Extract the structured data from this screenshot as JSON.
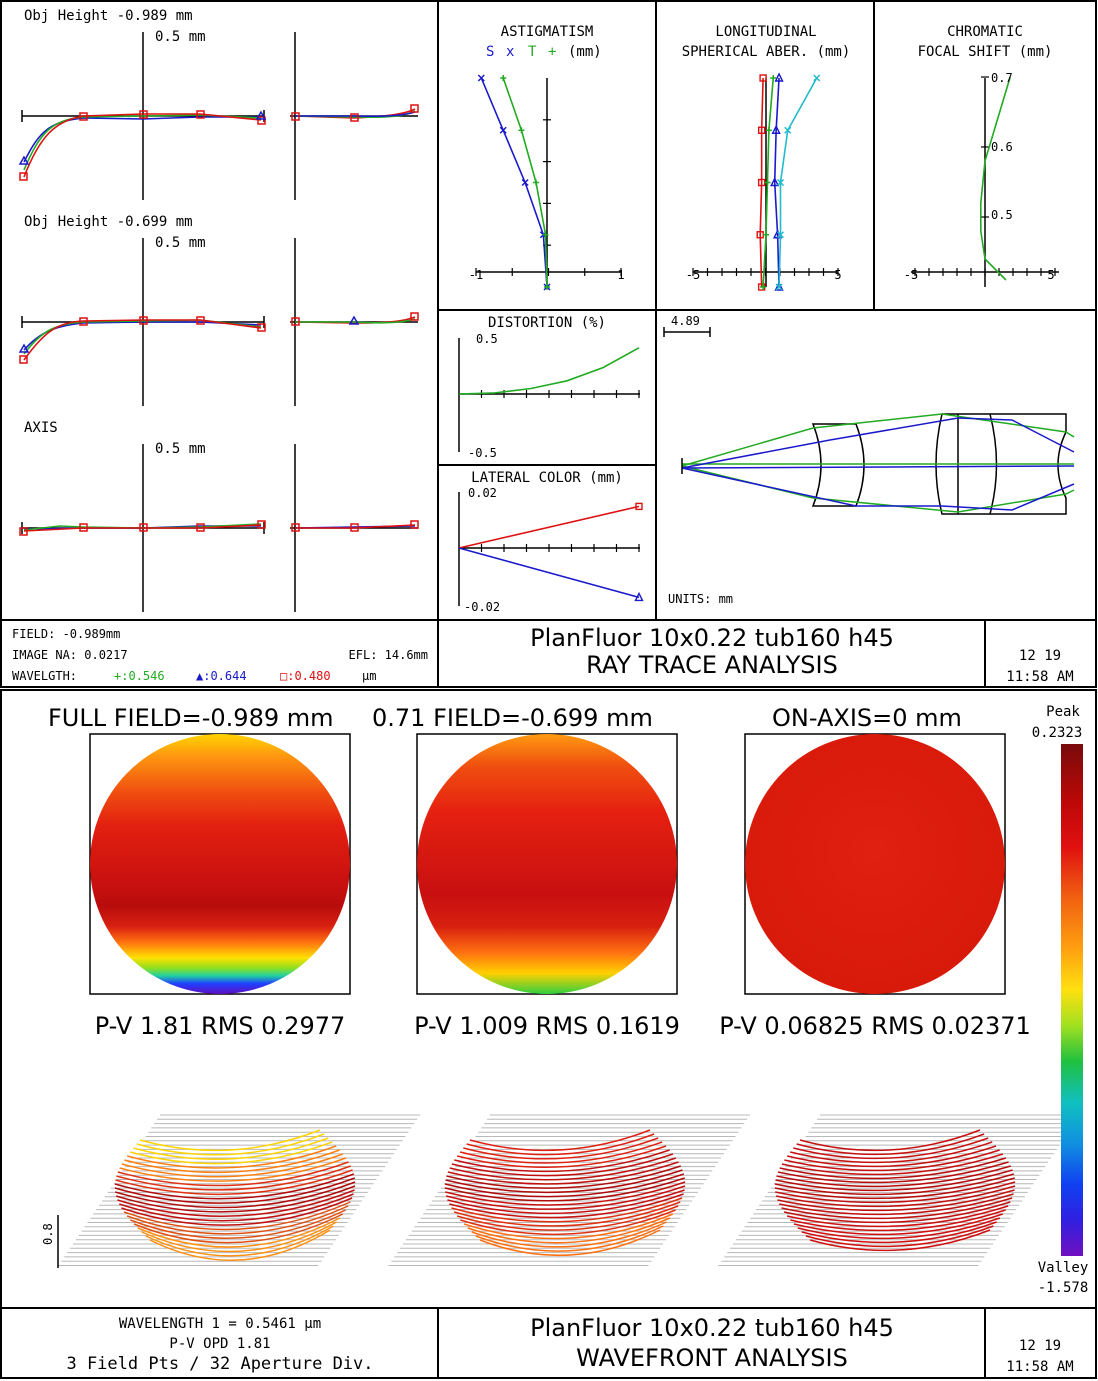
{
  "ray_panel": {
    "fan_labels": [
      "Obj Height -0.989 mm",
      "Obj Height -0.699 mm",
      "AXIS"
    ],
    "fan_scale": "0.5 mm",
    "astig_title": "ASTIGMATISM",
    "astig_legend": {
      "s": "S",
      "s_mark": "x",
      "t": "T",
      "t_mark": "+",
      "unit": "(mm)"
    },
    "astig_ticks": [
      "-1",
      "1"
    ],
    "long_title_1": "LONGITUDINAL",
    "long_title_2": "SPHERICAL ABER. (mm)",
    "long_ticks": [
      "-5",
      "5"
    ],
    "chrom_title_1": "CHROMATIC",
    "chrom_title_2": "FOCAL SHIFT (mm)",
    "chrom_ticks_x": [
      "-5",
      "5"
    ],
    "chrom_ticks_y": [
      "0.7",
      "0.6",
      "0.5"
    ],
    "dist_title": "DISTORTION (%)",
    "dist_ticks": [
      "0.5",
      "-0.5"
    ],
    "lat_title": "LATERAL COLOR (mm)",
    "lat_ticks": [
      "0.02",
      "-0.02"
    ],
    "lens_scale": "4.89",
    "units": "UNITS: mm",
    "field": "FIELD: -0.989mm",
    "image_na": "IMAGE NA: 0.0217",
    "efl": "EFL: 14.6mm",
    "wl_label": "WAVELGTH:",
    "wl_green": "+:0.546",
    "wl_blue": "▲:0.644",
    "wl_red": "□:0.480",
    "wl_unit": "µm",
    "title": "PlanFluor 10x0.22 tub160 h45",
    "subtitle": "RAY TRACE ANALYSIS",
    "date": "12  19",
    "time": "11:58 AM"
  },
  "wave_panel": {
    "field_labels": [
      "FULL FIELD=-0.989 mm",
      "0.71 FIELD=-0.699 mm",
      "ON-AXIS=0 mm"
    ],
    "stats": [
      "P-V 1.81 RMS 0.2977",
      "P-V 1.009 RMS 0.1619",
      "P-V 0.06825 RMS 0.02371"
    ],
    "peak_label": "Peak",
    "peak_value": "0.2323",
    "valley_label": "Valley",
    "valley_value": "-1.578",
    "iso_scale": "0.8",
    "info_1": "WAVELENGTH 1 = 0.5461 µm",
    "info_2": "P-V OPD 1.81",
    "info_3": "3 Field Pts / 32 Aperture Div.",
    "title": "PlanFluor 10x0.22 tub160 h45",
    "subtitle": "WAVEFRONT ANALYSIS",
    "date": "12  19",
    "time": "11:58 AM"
  },
  "colors": {
    "green": "#22aa22",
    "blue": "#1a1acc",
    "red": "#dd1111",
    "cyan": "#22bbcc"
  },
  "chart_data": [
    {
      "type": "line",
      "title": "ASTIGMATISM",
      "xlabel": "(mm)",
      "xlim": [
        -1,
        1
      ],
      "ylim": [
        0,
        1
      ],
      "series": [
        {
          "name": "S",
          "x": [
            -0.9,
            -0.6,
            -0.3,
            -0.05,
            0
          ],
          "y": [
            1.0,
            0.75,
            0.5,
            0.25,
            0
          ]
        },
        {
          "name": "T",
          "x": [
            -0.6,
            -0.35,
            -0.15,
            -0.02,
            0
          ],
          "y": [
            1.0,
            0.75,
            0.5,
            0.25,
            0
          ]
        }
      ]
    },
    {
      "type": "line",
      "title": "LONGITUDINAL SPHERICAL ABER. (mm)",
      "xlim": [
        -5,
        5
      ],
      "ylim": [
        0,
        1
      ],
      "series": [
        {
          "x": [
            0.9,
            0.7,
            0.6,
            0.8,
            0.9
          ],
          "y": [
            1.0,
            0.75,
            0.5,
            0.25,
            0
          ]
        },
        {
          "x": [
            -0.2,
            -0.3,
            -0.3,
            -0.4,
            -0.3
          ],
          "y": [
            1.0,
            0.75,
            0.5,
            0.25,
            0
          ]
        },
        {
          "x": [
            0.5,
            0.2,
            0.1,
            0.0,
            -0.2
          ],
          "y": [
            1.0,
            0.75,
            0.5,
            0.25,
            0
          ]
        },
        {
          "x": [
            3.5,
            1.5,
            1.0,
            1.0,
            0.9
          ],
          "y": [
            1.0,
            0.75,
            0.5,
            0.25,
            0
          ]
        }
      ]
    },
    {
      "type": "line",
      "title": "CHROMATIC FOCAL SHIFT (mm)",
      "xlim": [
        -5,
        5
      ],
      "ylim": [
        0.4,
        0.7
      ],
      "x": [
        1.8,
        0.9,
        0.0,
        -0.3,
        -0.3,
        0.0,
        1.5
      ],
      "y": [
        0.7,
        0.64,
        0.58,
        0.52,
        0.48,
        0.44,
        0.41
      ]
    },
    {
      "type": "line",
      "title": "DISTORTION (%)",
      "ylim": [
        -0.5,
        0.5
      ],
      "x": [
        0,
        0.2,
        0.4,
        0.6,
        0.8,
        1.0
      ],
      "y": [
        0,
        0.01,
        0.05,
        0.12,
        0.24,
        0.42
      ]
    },
    {
      "type": "line",
      "title": "LATERAL COLOR (mm)",
      "ylim": [
        -0.02,
        0.02
      ],
      "series": [
        {
          "x": [
            0,
            1.0
          ],
          "y": [
            0,
            0.016
          ]
        },
        {
          "x": [
            0,
            1.0
          ],
          "y": [
            0,
            -0.019
          ]
        }
      ]
    },
    {
      "type": "heatmap",
      "title": "WAVEFRONT ANALYSIS",
      "fields": [
        "FULL FIELD=-0.989 mm",
        "0.71 FIELD=-0.699 mm",
        "ON-AXIS=0 mm"
      ],
      "pv": [
        1.81,
        1.009,
        0.06825
      ],
      "rms": [
        0.2977,
        0.1619,
        0.02371
      ],
      "peak": 0.2323,
      "valley": -1.578
    }
  ]
}
